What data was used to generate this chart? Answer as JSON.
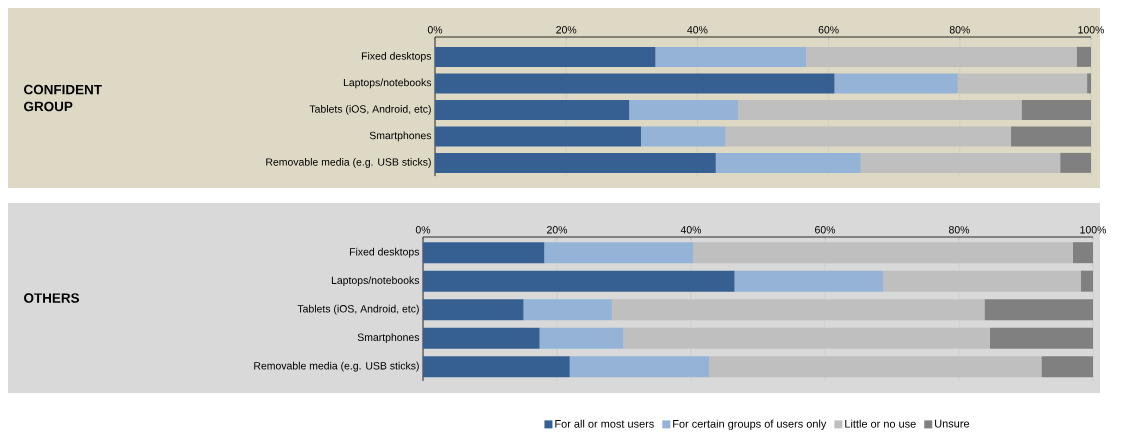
{
  "chart_data": [
    {
      "type": "bar",
      "orientation": "horizontal",
      "stacked": true,
      "ylabel": "CONFIDENT GROUP",
      "categories": [
        "Fixed desktops",
        "Laptops/notebooks",
        "Tablets (iOS, Android, etc)",
        "Smartphones",
        "Removable media (e.g. USB sticks)"
      ],
      "series": [
        {
          "color": "#366092",
          "values": [
            33.6,
            60.9,
            29.6,
            31.4,
            42.8
          ]
        },
        {
          "color": "#95b3d7",
          "values": [
            23.0,
            18.8,
            16.6,
            12.9,
            22.1
          ]
        },
        {
          "color": "#bfbfbf",
          "values": [
            41.2,
            19.7,
            43.2,
            43.5,
            30.4
          ]
        },
        {
          "color": "#808080",
          "values": [
            2.2,
            0.6,
            10.6,
            12.2,
            4.7
          ]
        }
      ],
      "xlim": [
        0,
        100
      ],
      "xticks": [
        {
          "value": 0,
          "label": "0%"
        },
        {
          "value": 20,
          "label": "20%"
        },
        {
          "value": 40,
          "label": "40%"
        },
        {
          "value": 60,
          "label": "60%"
        },
        {
          "value": 80,
          "label": "80%"
        },
        {
          "value": 100,
          "label": "100%"
        }
      ],
      "grid": "x",
      "legend": false
    },
    {
      "type": "bar",
      "orientation": "horizontal",
      "stacked": true,
      "ylabel": "OTHERS",
      "categories": [
        "Fixed desktops",
        "Laptops/notebooks",
        "Tablets (iOS, Android, etc)",
        "Smartphones",
        "Removable media (e.g. USB sticks)"
      ],
      "series": [
        {
          "name": "For all or most users",
          "color": "#366092",
          "values": [
            18.1,
            46.5,
            15.0,
            17.4,
            21.9
          ]
        },
        {
          "name": "For certain groups of users only",
          "color": "#95b3d7",
          "values": [
            22.2,
            22.2,
            13.2,
            12.5,
            20.8
          ]
        },
        {
          "name": "Little or no use",
          "color": "#bfbfbf",
          "values": [
            56.7,
            29.5,
            55.6,
            54.7,
            49.6
          ]
        },
        {
          "name": "Unsure",
          "color": "#808080",
          "values": [
            3.0,
            1.8,
            16.2,
            15.4,
            7.7
          ]
        }
      ],
      "xlim": [
        0,
        100
      ],
      "xticks": [
        {
          "value": 0,
          "label": "0%"
        },
        {
          "value": 20,
          "label": "20%"
        },
        {
          "value": 40,
          "label": "40%"
        },
        {
          "value": 60,
          "label": "60%"
        },
        {
          "value": 80,
          "label": "80%"
        },
        {
          "value": 100,
          "label": "100%"
        }
      ],
      "grid": "x",
      "legend": "bottom"
    }
  ]
}
